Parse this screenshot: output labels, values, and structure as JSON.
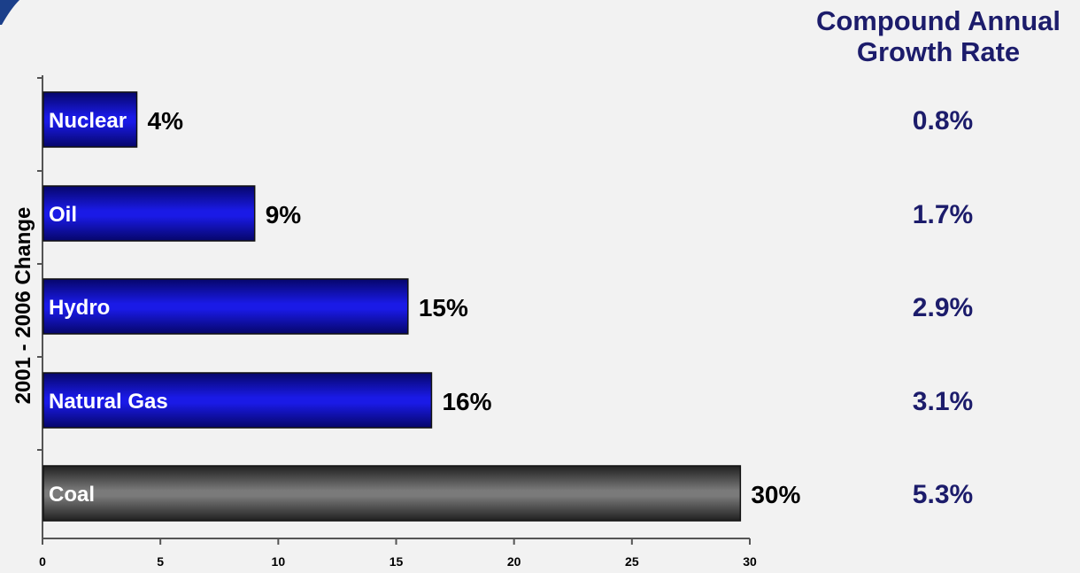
{
  "chart_data": {
    "type": "bar",
    "orientation": "horizontal",
    "categories": [
      "Nuclear",
      "Oil",
      "Hydro",
      "Natural Gas",
      "Coal"
    ],
    "values": [
      4,
      9,
      15.5,
      16.5,
      29.6
    ],
    "value_labels": [
      "4%",
      "9%",
      "15%",
      "16%",
      "30%"
    ],
    "bar_colors": [
      "#1414d8",
      "#1414d8",
      "#1414d8",
      "#1414d8",
      "#6a6a6a"
    ],
    "ylabel": "2001 - 2006 Change",
    "xlim": [
      0,
      30
    ],
    "xticks": [
      "0",
      "5",
      "10",
      "15",
      "20",
      "25",
      "30"
    ],
    "grid": false,
    "side_table": {
      "title_lines": [
        "Compound Annual",
        "Growth Rate"
      ],
      "values": [
        "0.8%",
        "1.7%",
        "2.9%",
        "3.1%",
        "5.3%"
      ]
    }
  }
}
